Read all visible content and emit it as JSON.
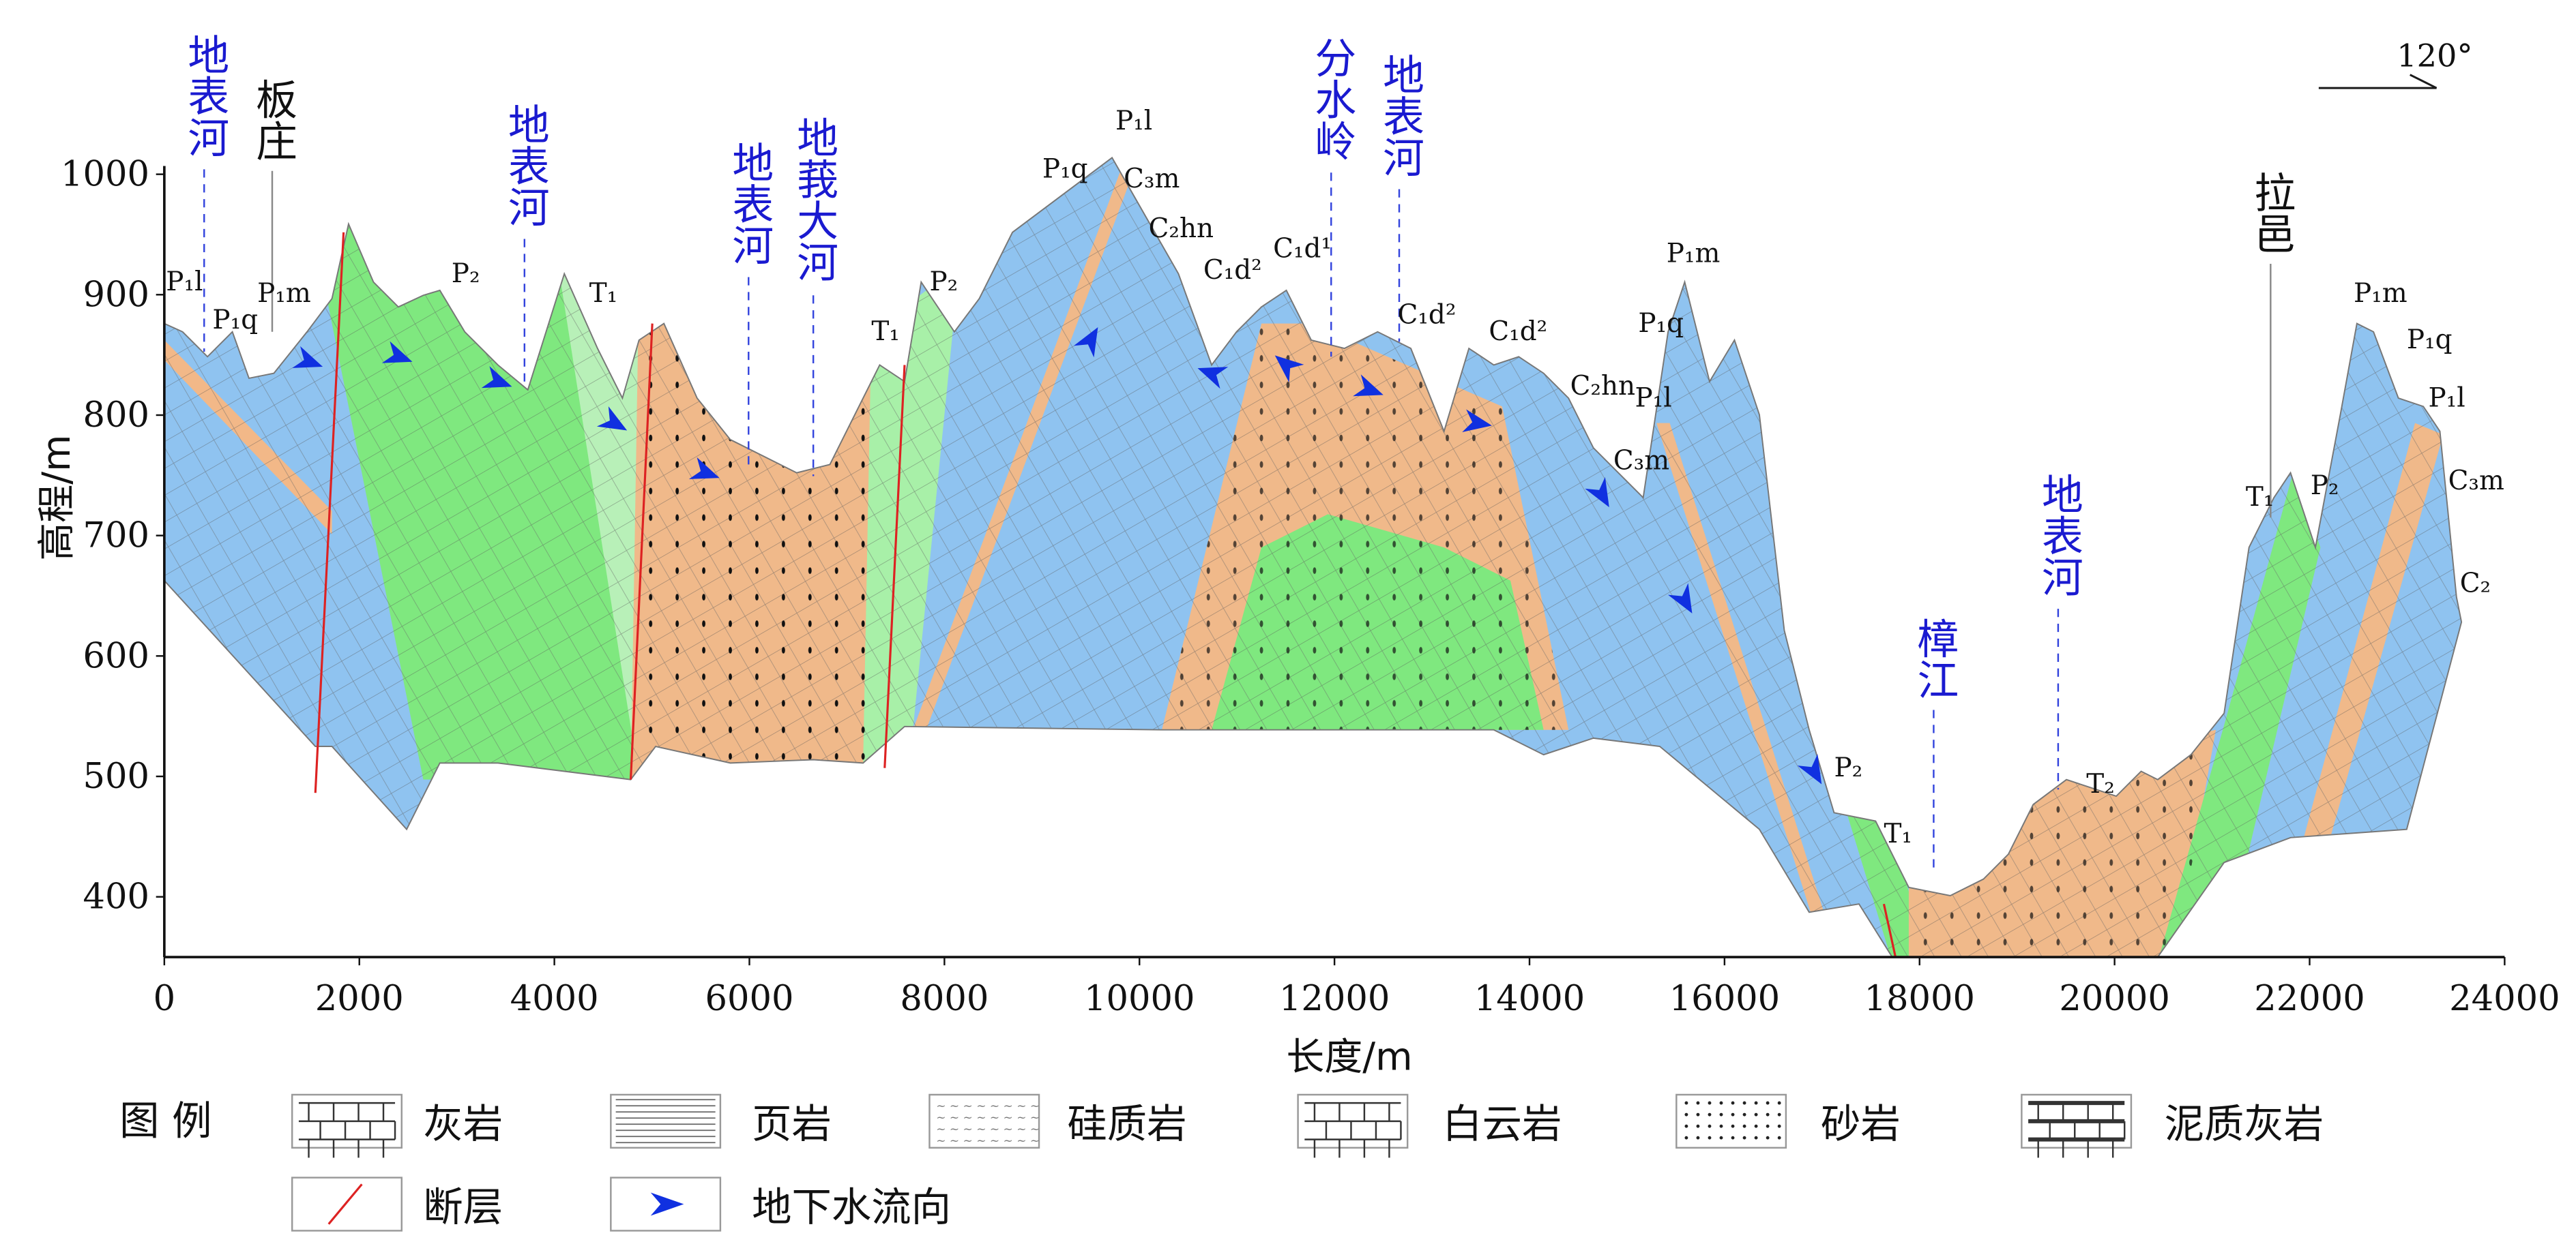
{
  "section": {
    "xlabel": "长度/m",
    "ylabel": "高程/m",
    "xlim": [
      0,
      24000
    ],
    "ylim": [
      350,
      1000
    ],
    "xticks": [
      0,
      2000,
      4000,
      6000,
      8000,
      10000,
      12000,
      14000,
      16000,
      18000,
      20000,
      22000,
      24000
    ],
    "yticks": [
      400,
      500,
      600,
      700,
      800,
      900,
      1000
    ],
    "orientation": "120°",
    "place_labels": [
      "地表河",
      "板庄",
      "地表河",
      "地表河",
      "地莪大河",
      "分水岭",
      "地表河",
      "樟江",
      "地表河",
      "拉邑"
    ],
    "strata_labels": [
      "P₁l",
      "P₁q",
      "P₁m",
      "P₂",
      "T₁",
      "T₁",
      "P₂",
      "P₁q",
      "P₁l",
      "C₃m",
      "C₂hn",
      "C₁d²",
      "C₁d¹",
      "C₁d²",
      "C₁d²",
      "C₂hn",
      "P₁l",
      "P₁q",
      "P₁m",
      "C₃m",
      "P₂",
      "T₁",
      "T₂",
      "T₁",
      "P₂",
      "P₁m",
      "P₁q",
      "P₁l",
      "C₃m",
      "C₂"
    ],
    "legend": {
      "title": "图 例",
      "items": [
        "灰岩",
        "页岩",
        "硅质岩",
        "白云岩",
        "砂岩",
        "泥质灰岩",
        "断层",
        "地下水流向"
      ]
    }
  }
}
